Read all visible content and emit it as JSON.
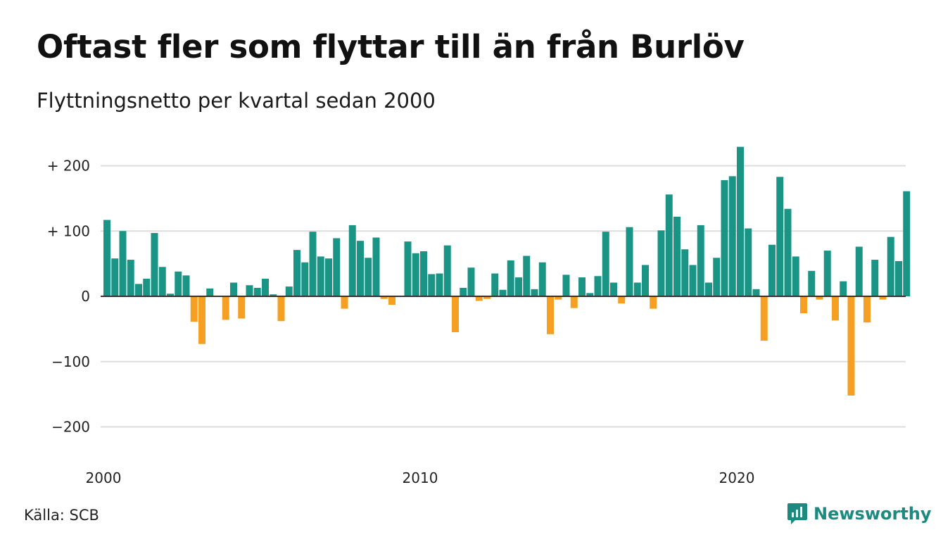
{
  "title": "Oftast fler som flyttar till än från Burlöv",
  "subtitle": "Flyttningsnetto per kvartal sedan 2000",
  "source": "Källa: SCB",
  "logo": {
    "text": "Newsworthy",
    "icon": "newsworthy-logo-icon"
  },
  "colors": {
    "positive": "#1a9585",
    "negative": "#f5a023",
    "grid": "#dddddd",
    "axis": "#333333"
  },
  "chart_data": {
    "type": "bar",
    "start_year": 2000,
    "periods_per_year": 4,
    "values": [
      117,
      58,
      100,
      56,
      19,
      27,
      97,
      45,
      4,
      38,
      32,
      -39,
      -73,
      12,
      0,
      -36,
      21,
      -34,
      17,
      13,
      27,
      3,
      -38,
      15,
      71,
      52,
      99,
      61,
      58,
      89,
      -19,
      109,
      85,
      59,
      90,
      -4,
      -13,
      0,
      84,
      66,
      69,
      34,
      35,
      78,
      -55,
      13,
      44,
      -7,
      -4,
      35,
      10,
      55,
      29,
      62,
      11,
      52,
      -58,
      -5,
      33,
      -18,
      29,
      5,
      31,
      99,
      21,
      -11,
      106,
      21,
      48,
      -19,
      101,
      156,
      122,
      72,
      48,
      109,
      21,
      59,
      178,
      184,
      229,
      104,
      11,
      -68,
      79,
      183,
      134,
      61,
      -26,
      39,
      -5,
      70,
      -37,
      23,
      -152,
      76,
      -40,
      56,
      -5,
      91,
      54,
      161
    ],
    "yticks": [
      {
        "value": 200,
        "label": "+ 200"
      },
      {
        "value": 100,
        "label": "+ 100"
      },
      {
        "value": 0,
        "label": "0"
      },
      {
        "value": -100,
        "label": "−100"
      },
      {
        "value": -200,
        "label": "−200"
      }
    ],
    "xticks": [
      {
        "value": 2000,
        "label": "2000"
      },
      {
        "value": 2010,
        "label": "2010"
      },
      {
        "value": 2020,
        "label": "2020"
      }
    ],
    "ylim": [
      -210,
      245
    ],
    "grid": true,
    "legend": "none"
  }
}
